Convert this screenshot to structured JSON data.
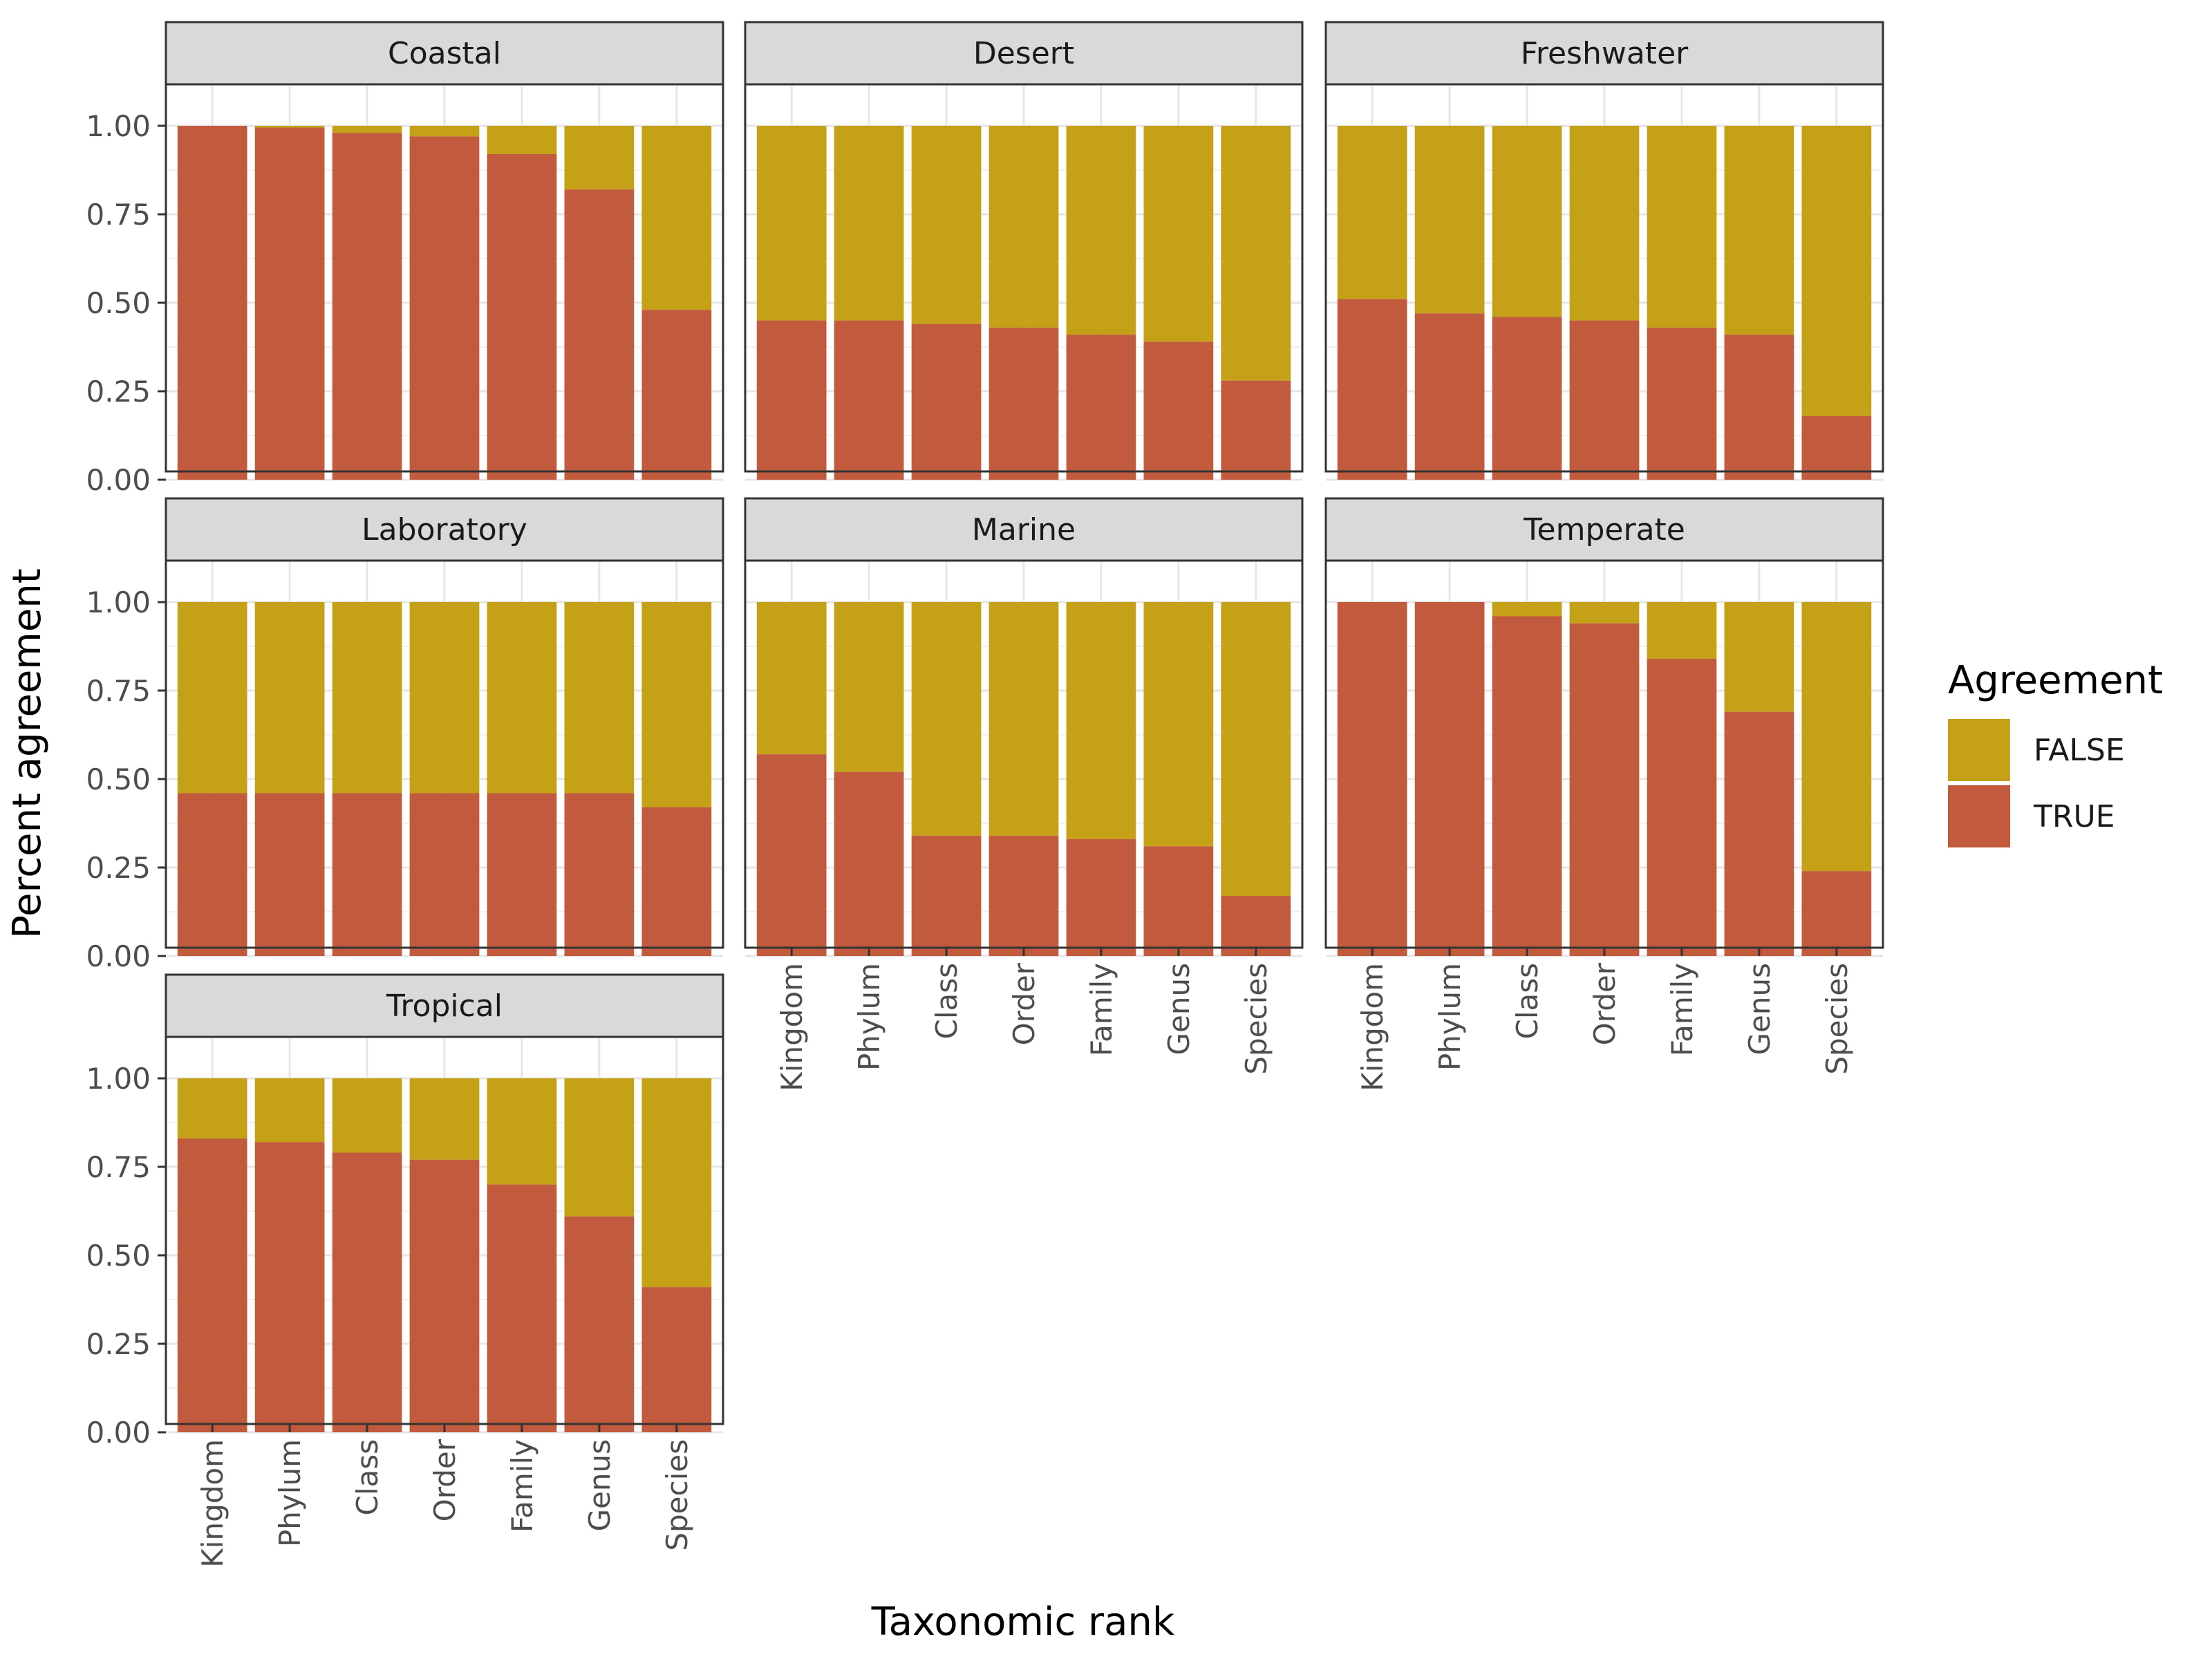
{
  "chart_data": {
    "type": "bar",
    "stacked": true,
    "facet_by": "environment",
    "xlabel": "Taxonomic rank",
    "ylabel": "Percent agreement",
    "ylim": [
      0,
      1
    ],
    "y_ticks": [
      "0.00",
      "0.25",
      "0.50",
      "0.75",
      "1.00"
    ],
    "categories": [
      "Kingdom",
      "Phylum",
      "Class",
      "Order",
      "Family",
      "Genus",
      "Species"
    ],
    "legend": {
      "title": "Agreement",
      "position": "right",
      "entries": [
        {
          "label": "FALSE",
          "color": "#C4A116"
        },
        {
          "label": "TRUE",
          "color": "#C25B3E"
        }
      ]
    },
    "grid": true,
    "facets": [
      {
        "name": "Coastal",
        "true_values": [
          1.0,
          0.995,
          0.98,
          0.97,
          0.92,
          0.82,
          0.48
        ]
      },
      {
        "name": "Desert",
        "true_values": [
          0.45,
          0.45,
          0.44,
          0.43,
          0.41,
          0.39,
          0.28
        ]
      },
      {
        "name": "Freshwater",
        "true_values": [
          0.51,
          0.47,
          0.46,
          0.45,
          0.43,
          0.41,
          0.18
        ]
      },
      {
        "name": "Laboratory",
        "true_values": [
          0.46,
          0.46,
          0.46,
          0.46,
          0.46,
          0.46,
          0.42
        ]
      },
      {
        "name": "Marine",
        "true_values": [
          0.57,
          0.52,
          0.34,
          0.34,
          0.33,
          0.31,
          0.17
        ]
      },
      {
        "name": "Temperate",
        "true_values": [
          1.0,
          1.0,
          0.96,
          0.94,
          0.84,
          0.69,
          0.24
        ]
      },
      {
        "name": "Tropical",
        "true_values": [
          0.83,
          0.82,
          0.79,
          0.77,
          0.7,
          0.61,
          0.41
        ]
      }
    ]
  }
}
